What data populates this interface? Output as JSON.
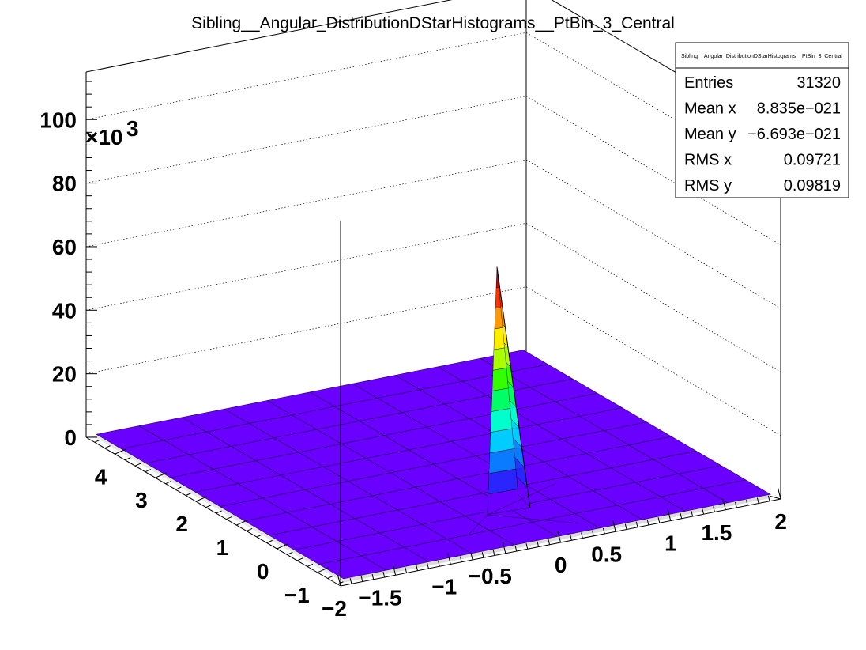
{
  "chart_data": {
    "type": "surface",
    "title": "Sibling__Angular_DistributionDStarHistograms__PtBin_3_Central",
    "x_axis": {
      "range": [
        -2,
        2
      ],
      "ticks": [
        {
          "value": -2,
          "label": "−2"
        },
        {
          "value": -1.5,
          "label": "−1.5"
        },
        {
          "value": -1,
          "label": "−1"
        },
        {
          "value": -0.5,
          "label": "−0.5"
        },
        {
          "value": 0,
          "label": "0"
        },
        {
          "value": 0.5,
          "label": "0.5"
        },
        {
          "value": 1,
          "label": "1"
        },
        {
          "value": 1.5,
          "label": "1.5"
        },
        {
          "value": 2,
          "label": "2"
        }
      ]
    },
    "y_axis": {
      "range": [
        -1.57,
        4.71
      ],
      "ticks": [
        {
          "value": -1,
          "label": "−1"
        },
        {
          "value": 0,
          "label": "0"
        },
        {
          "value": 1,
          "label": "1"
        },
        {
          "value": 2,
          "label": "2"
        },
        {
          "value": 3,
          "label": "3"
        },
        {
          "value": 4,
          "label": "4"
        }
      ]
    },
    "z_axis": {
      "range": [
        0,
        115
      ],
      "exponent_label": "×10",
      "exponent_power": "3",
      "ticks": [
        {
          "value": 0,
          "label": "0"
        },
        {
          "value": 20,
          "label": "20"
        },
        {
          "value": 40,
          "label": "40"
        },
        {
          "value": 60,
          "label": "60"
        },
        {
          "value": 80,
          "label": "80"
        },
        {
          "value": 100,
          "label": "100"
        }
      ]
    },
    "bins": {
      "nx": 10,
      "ny": 10
    },
    "peak": {
      "x": 0,
      "y": 0,
      "value": 75
    },
    "grid": true,
    "palette": [
      "#6a00ff",
      "#2a25ff",
      "#0a7bff",
      "#00ccff",
      "#00ffcc",
      "#00ff66",
      "#33ff00",
      "#aaff00",
      "#ffee00",
      "#ff9900",
      "#ff3300",
      "#cc0000"
    ]
  },
  "stats": {
    "title": "Sibling__Angular_DistributionDStarHistograms__PtBin_3_Central",
    "rows": [
      {
        "label": "Entries",
        "value": "31320"
      },
      {
        "label": "Mean x",
        "value": "8.835e−021"
      },
      {
        "label": "Mean y",
        "value": "−6.693e−021"
      },
      {
        "label": "RMS x",
        "value": "0.09721"
      },
      {
        "label": "RMS y",
        "value": "0.09819"
      }
    ]
  }
}
